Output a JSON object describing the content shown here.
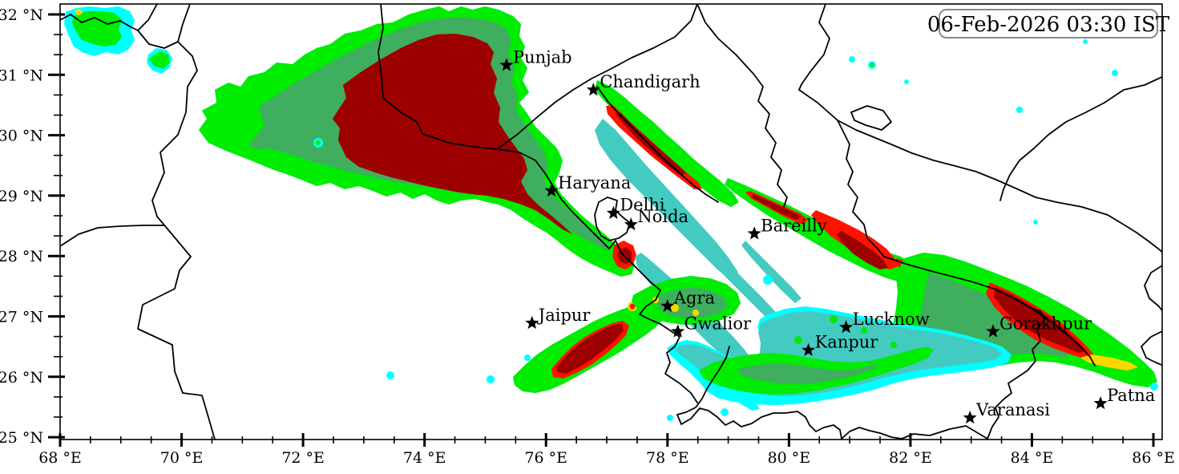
{
  "timestamp_box": {
    "text": "06-Feb-2026 03:30 IST"
  },
  "chart_data": {
    "type": "map-contour",
    "description_visible": "fog/low-cloud intensity contour map over north India",
    "x_axis": {
      "tick_values": [
        68,
        70,
        72,
        74,
        76,
        78,
        80,
        82,
        84,
        86
      ],
      "tick_labels": [
        "68 °E",
        "70 °E",
        "72 °E",
        "74 °E",
        "76 °E",
        "78 °E",
        "80 °E",
        "82 °E",
        "84 °E",
        "86 °E"
      ],
      "minor_step_deg": 0.5
    },
    "y_axis": {
      "tick_values": [
        32,
        31,
        30,
        29,
        28,
        27,
        26,
        25
      ],
      "tick_labels": [
        "32 °N",
        "31 °N",
        "30 °N",
        "29 °N",
        "28 °N",
        "27 °N",
        "26 °N",
        "25 °N"
      ],
      "minor_step_deg": 0.3333
    },
    "extent": {
      "lon_min": 68,
      "lon_max": 86.15,
      "lat_min": 25.04,
      "lat_max": 32.17
    },
    "intensity_levels": [
      {
        "level": 1,
        "color": "#00FFFF"
      },
      {
        "level": 2,
        "color": "#43CBC1"
      },
      {
        "level": 3,
        "color": "#00EC00"
      },
      {
        "level": 4,
        "color": "#3FAE5F"
      },
      {
        "level": 5,
        "color": "#FFD700"
      },
      {
        "level": 6,
        "color": "#FF1200"
      },
      {
        "level": 7,
        "color": "#9C0000"
      }
    ],
    "cities": [
      {
        "name": "Punjab",
        "lon": 75.35,
        "lat": 31.16
      },
      {
        "name": "Chandigarh",
        "lon": 76.78,
        "lat": 30.75
      },
      {
        "name": "Haryana",
        "lon": 76.09,
        "lat": 29.08
      },
      {
        "name": "Delhi",
        "lon": 77.11,
        "lat": 28.71
      },
      {
        "name": "Noida",
        "lon": 77.4,
        "lat": 28.52
      },
      {
        "name": "Bareilly",
        "lon": 79.43,
        "lat": 28.37
      },
      {
        "name": "Jaipur",
        "lon": 75.77,
        "lat": 26.89
      },
      {
        "name": "Agra",
        "lon": 78.0,
        "lat": 27.17
      },
      {
        "name": "Gwalior",
        "lon": 78.17,
        "lat": 26.75
      },
      {
        "name": "Lucknow",
        "lon": 80.94,
        "lat": 26.82
      },
      {
        "name": "Kanpur",
        "lon": 80.32,
        "lat": 26.44
      },
      {
        "name": "Gorakhpur",
        "lon": 83.36,
        "lat": 26.75
      },
      {
        "name": "Varanasi",
        "lon": 82.98,
        "lat": 25.32
      },
      {
        "name": "Patna",
        "lon": 85.13,
        "lat": 25.56
      }
    ]
  }
}
